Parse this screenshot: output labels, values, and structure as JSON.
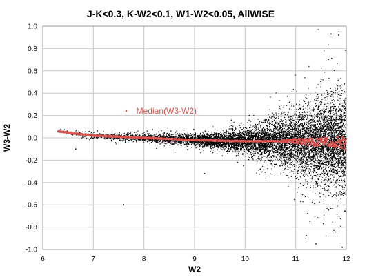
{
  "chart_data": {
    "type": "scatter",
    "title": "J-K<0.3, K-W2<0.1, W1-W2<0.05, AllWISE",
    "xlabel": "W2",
    "ylabel": "W3-W2",
    "xlim": [
      6,
      12
    ],
    "ylim": [
      -1.0,
      1.0
    ],
    "x_ticks": [
      "6",
      "7",
      "8",
      "9",
      "10",
      "11",
      "12"
    ],
    "y_ticks": [
      "1.0",
      "0.8",
      "0.6",
      "0.4",
      "0.2",
      "0.0",
      "-0.2",
      "-0.4",
      "-0.6",
      "-0.8",
      "-1.0"
    ],
    "grid": true,
    "series": [
      {
        "description": "individual sources (black points); scatter in W3-W2 grows with W2",
        "color": "#000000",
        "spread_profile": {
          "w2": [
            6.2,
            7.0,
            8.0,
            9.0,
            9.5,
            10.0,
            10.5,
            11.0,
            11.5,
            12.0
          ],
          "sigma": [
            0.015,
            0.012,
            0.015,
            0.025,
            0.035,
            0.05,
            0.08,
            0.13,
            0.18,
            0.22
          ]
        }
      },
      {
        "name": "Median(W3-W2)",
        "color": "#d9534f",
        "x": [
          6.3,
          6.6,
          7.0,
          7.5,
          8.0,
          8.5,
          9.0,
          9.5,
          10.0,
          10.5,
          11.0,
          11.3,
          11.6,
          11.9,
          12.0
        ],
        "y": [
          0.06,
          0.04,
          0.02,
          0.01,
          0.0,
          -0.01,
          -0.02,
          -0.025,
          -0.03,
          -0.03,
          -0.03,
          -0.035,
          -0.04,
          -0.045,
          -0.05
        ]
      }
    ],
    "annotations": [
      {
        "text": "Median(W3-W2)",
        "x": 7.85,
        "y": 0.24,
        "color": "#d9534f"
      }
    ]
  }
}
